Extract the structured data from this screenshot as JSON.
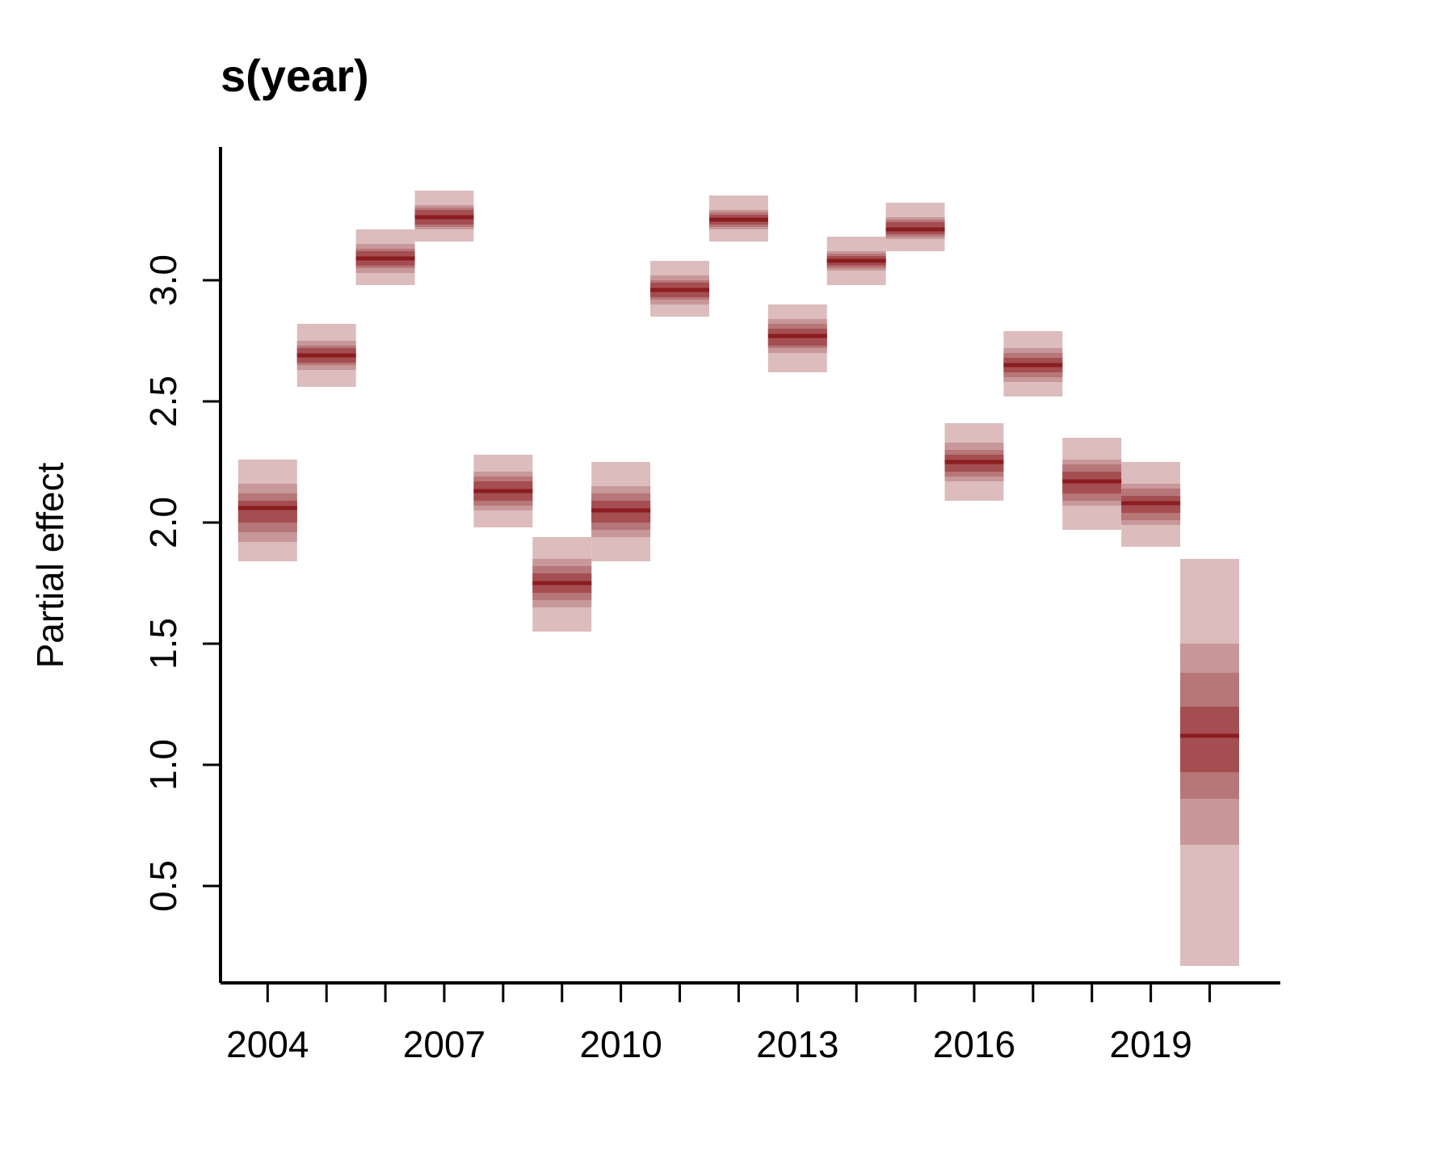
{
  "chart_data": {
    "type": "bar",
    "title": "s(year)",
    "xlabel": "",
    "ylabel": "Partial effect",
    "xlim": [
      2003.2,
      2021.2
    ],
    "ylim": [
      0.1,
      3.55
    ],
    "x_ticks": [
      2004,
      2005,
      2006,
      2007,
      2008,
      2009,
      2010,
      2011,
      2012,
      2013,
      2014,
      2015,
      2016,
      2017,
      2018,
      2019,
      2020
    ],
    "x_tick_labels": [
      "2004",
      "2007",
      "2010",
      "2013",
      "2016",
      "2019"
    ],
    "x_tick_label_values": [
      2004,
      2007,
      2010,
      2013,
      2016,
      2019
    ],
    "y_ticks": [
      0.5,
      1.0,
      1.5,
      2.0,
      2.5,
      3.0
    ],
    "y_tick_labels": [
      "0.5",
      "1.0",
      "1.5",
      "2.0",
      "2.5",
      "3.0"
    ],
    "grid": false,
    "band_colors": [
      "#dcbcbd",
      "#c79799",
      "#b77678",
      "#a44e51"
    ],
    "median_color": "#8b1c1f",
    "series": [
      {
        "x": [
          2004,
          2005,
          2006,
          2007,
          2008,
          2009,
          2010,
          2011,
          2012,
          2013,
          2014,
          2015,
          2016,
          2017,
          2018,
          2019,
          2020
        ],
        "median": [
          2.06,
          2.69,
          3.09,
          3.26,
          2.13,
          1.75,
          2.05,
          2.96,
          3.25,
          2.77,
          3.08,
          3.21,
          2.25,
          2.65,
          2.17,
          2.08,
          1.12
        ],
        "interval_95": [
          [
            1.84,
            2.26
          ],
          [
            2.56,
            2.82
          ],
          [
            2.98,
            3.21
          ],
          [
            3.16,
            3.37
          ],
          [
            1.98,
            2.28
          ],
          [
            1.55,
            1.94
          ],
          [
            1.84,
            2.25
          ],
          [
            2.85,
            3.08
          ],
          [
            3.16,
            3.35
          ],
          [
            2.62,
            2.9
          ],
          [
            2.98,
            3.18
          ],
          [
            3.12,
            3.32
          ],
          [
            2.09,
            2.41
          ],
          [
            2.52,
            2.79
          ],
          [
            1.97,
            2.35
          ],
          [
            1.9,
            2.25
          ],
          [
            0.17,
            1.85
          ]
        ],
        "interval_80": [
          [
            1.92,
            2.16
          ],
          [
            2.63,
            2.75
          ],
          [
            3.03,
            3.15
          ],
          [
            3.21,
            3.31
          ],
          [
            2.05,
            2.21
          ],
          [
            1.65,
            1.85
          ],
          [
            1.94,
            2.15
          ],
          [
            2.9,
            3.02
          ],
          [
            3.21,
            3.29
          ],
          [
            2.7,
            2.84
          ],
          [
            3.04,
            3.12
          ],
          [
            3.17,
            3.26
          ],
          [
            2.17,
            2.33
          ],
          [
            2.58,
            2.72
          ],
          [
            2.07,
            2.26
          ],
          [
            1.99,
            2.16
          ],
          [
            0.67,
            1.5
          ]
        ],
        "interval_66": [
          [
            1.96,
            2.12
          ],
          [
            2.65,
            2.73
          ],
          [
            3.05,
            3.13
          ],
          [
            3.22,
            3.3
          ],
          [
            2.07,
            2.19
          ],
          [
            1.68,
            1.82
          ],
          [
            1.97,
            2.12
          ],
          [
            2.92,
            3.0
          ],
          [
            3.22,
            3.28
          ],
          [
            2.72,
            2.82
          ],
          [
            3.05,
            3.11
          ],
          [
            3.18,
            3.25
          ],
          [
            2.19,
            2.3
          ],
          [
            2.6,
            2.7
          ],
          [
            2.09,
            2.24
          ],
          [
            2.01,
            2.14
          ],
          [
            0.86,
            1.38
          ]
        ],
        "interval_50": [
          [
            2.0,
            2.09
          ],
          [
            2.66,
            2.72
          ],
          [
            3.06,
            3.12
          ],
          [
            3.23,
            3.29
          ],
          [
            2.09,
            2.17
          ],
          [
            1.71,
            1.79
          ],
          [
            2.0,
            2.09
          ],
          [
            2.93,
            2.99
          ],
          [
            3.23,
            3.27
          ],
          [
            2.73,
            2.8
          ],
          [
            3.06,
            3.1
          ],
          [
            3.19,
            3.24
          ],
          [
            2.21,
            2.28
          ],
          [
            2.62,
            2.68
          ],
          [
            2.12,
            2.21
          ],
          [
            2.04,
            2.11
          ],
          [
            0.97,
            1.24
          ]
        ]
      }
    ]
  }
}
